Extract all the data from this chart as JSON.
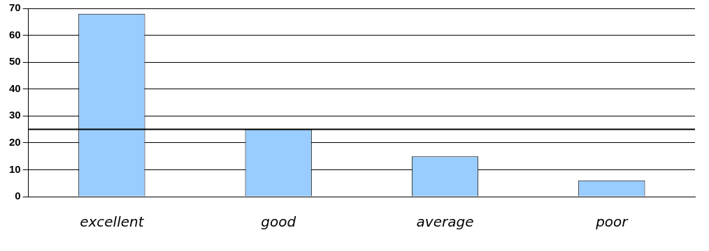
{
  "chart_data": {
    "type": "bar",
    "categories": [
      "excellent",
      "good",
      "average",
      "poor"
    ],
    "values": [
      68,
      25,
      15,
      6
    ],
    "color": "#99ccff",
    "ylim": [
      0,
      70
    ],
    "yticks": [
      0,
      10,
      20,
      30,
      40,
      50,
      60,
      70
    ],
    "grid": "y",
    "ref_lines": [
      {
        "axis": "y",
        "value": 25,
        "color": "#000000"
      }
    ]
  }
}
